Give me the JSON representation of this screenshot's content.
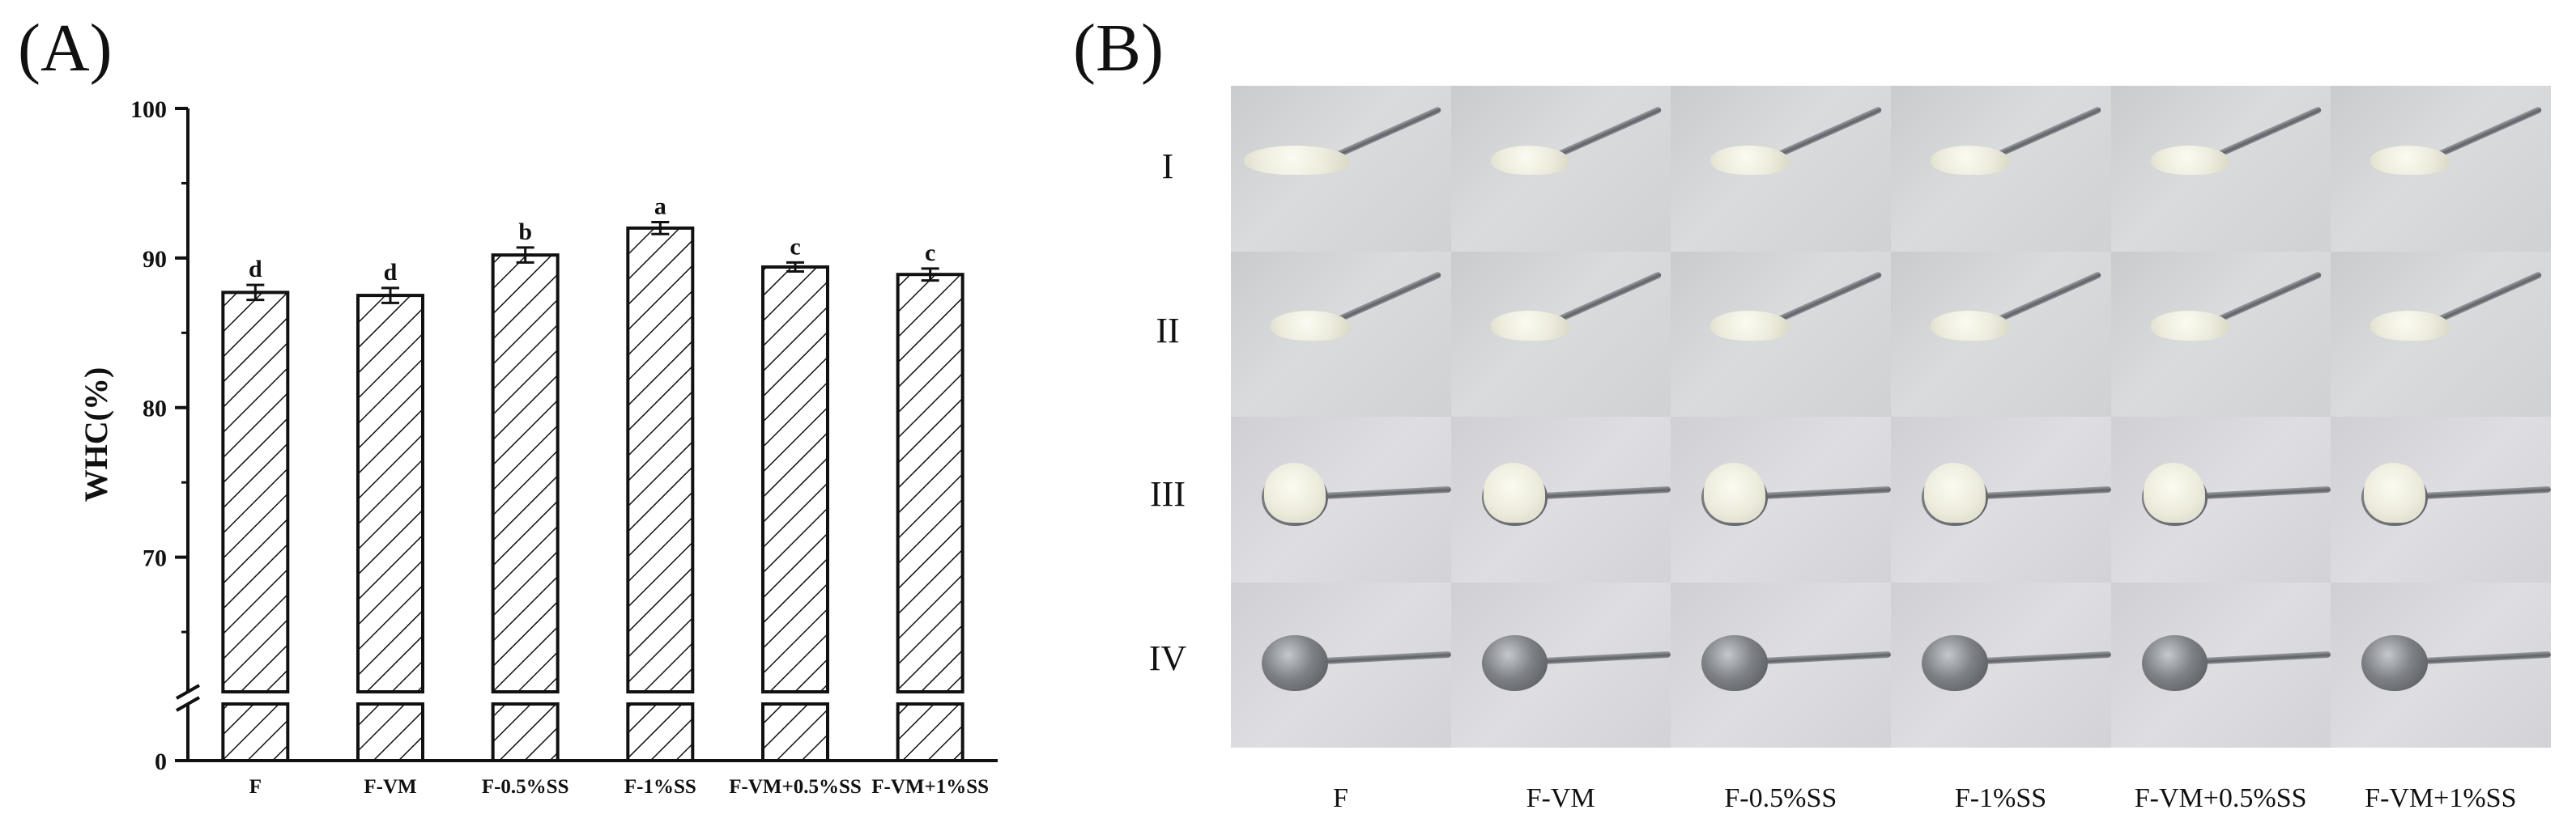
{
  "panels": {
    "a_label": "(A)",
    "b_label": "(B)"
  },
  "chart_data": {
    "type": "bar",
    "categories": [
      "F",
      "F-VM",
      "F-0.5%SS",
      "F-1%SS",
      "F-VM+0.5%SS",
      "F-VM+1%SS"
    ],
    "values": [
      87.7,
      87.5,
      90.2,
      92.0,
      89.4,
      88.9
    ],
    "errors": [
      0.5,
      0.5,
      0.5,
      0.4,
      0.3,
      0.4
    ],
    "significance": [
      "d",
      "d",
      "b",
      "a",
      "c",
      "c"
    ],
    "ylabel": "WHC(%)",
    "xlabel": "",
    "yticks_upper": [
      70,
      80,
      90,
      100
    ],
    "ytick_lower": 0,
    "ylim_upper": [
      61,
      100
    ],
    "axis_break": true,
    "bar_fill": "hatched",
    "grid": false,
    "legend": "none"
  },
  "photos": {
    "row_labels": [
      "I",
      "II",
      "III",
      "IV"
    ],
    "column_labels": [
      "F",
      "F-VM",
      "F-0.5%SS",
      "F-1%SS",
      "F-VM+0.5%SS",
      "F-VM+1%SS"
    ]
  }
}
